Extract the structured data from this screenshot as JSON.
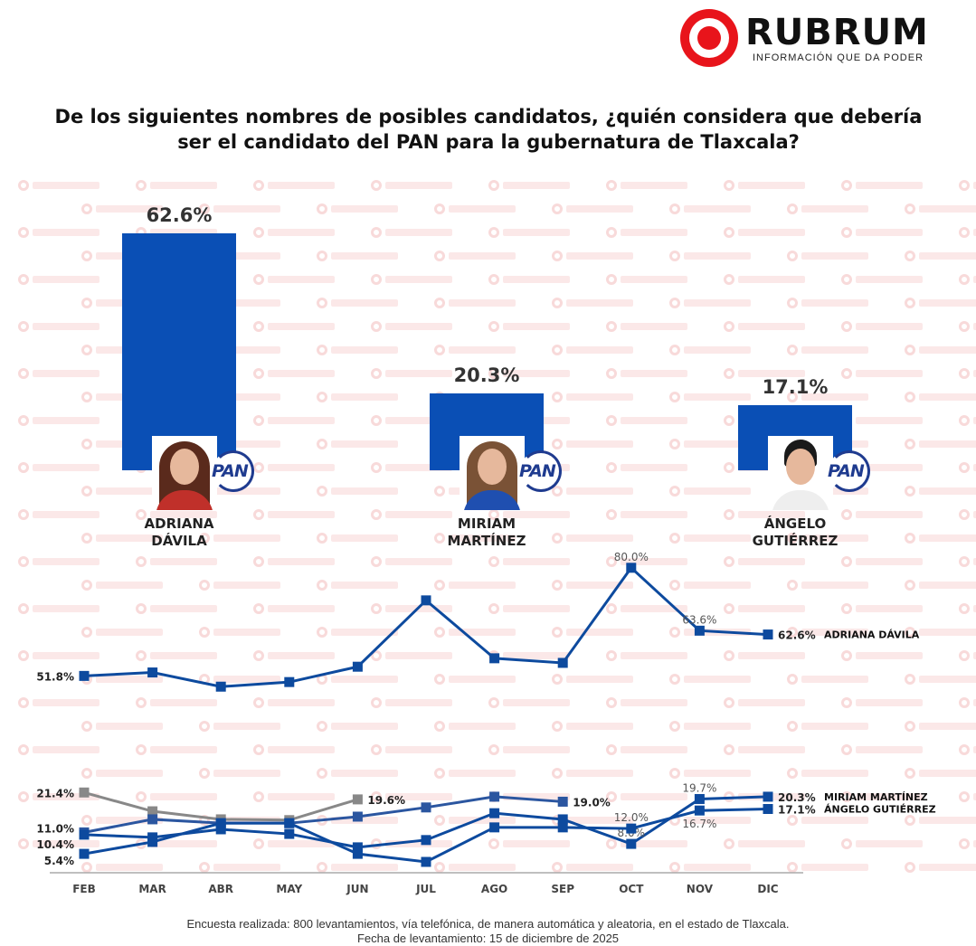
{
  "brand": {
    "name": "RUBRUM",
    "tagline": "INFORMACIÓN QUE DA PODER",
    "watermark": "RUBRUM"
  },
  "title": "De los siguientes nombres de posibles candidatos, ¿quién considera que debería ser el candidato del PAN para la gubernatura de Tlaxcala?",
  "colors": {
    "bar": "#0a4fb5",
    "line": "#0d4a9e",
    "gray": "#888888",
    "logo_red": "#e8141b"
  },
  "chart_data": [
    {
      "type": "bar",
      "title": "De los siguientes nombres de posibles candidatos, ¿quién considera que debería ser el candidato del PAN para la gubernatura de Tlaxcala?",
      "categories": [
        "ADRIANA DÁVILA",
        "MIRIAM MARTÍNEZ",
        "ÁNGELO GUTIÉRREZ"
      ],
      "name_lines": [
        [
          "ADRIANA",
          "DÁVILA"
        ],
        [
          "MIRIAM",
          "MARTÍNEZ"
        ],
        [
          "ÁNGELO",
          "GUTIÉRREZ"
        ]
      ],
      "values": [
        62.6,
        20.3,
        17.1
      ],
      "value_labels": [
        "62.6%",
        "20.3%",
        "17.1%"
      ],
      "party_logo_text": "PAN"
    },
    {
      "type": "line",
      "x": [
        "FEB",
        "MAR",
        "ABR",
        "MAY",
        "JUN",
        "JUL",
        "AGO",
        "SEP",
        "OCT",
        "NOV",
        "DIC"
      ],
      "ylim": [
        0,
        85
      ],
      "grid": false,
      "series": [
        {
          "name": "ADRIANA DÁVILA",
          "color": "#0d4a9e",
          "values": [
            51.8,
            52.7,
            49.0,
            50.2,
            54.2,
            71.5,
            56.4,
            55.2,
            80.0,
            63.6,
            62.6
          ],
          "labels": [
            {
              "i": 0,
              "text": "51.8%",
              "pos": "left",
              "bold": true
            },
            {
              "i": 8,
              "text": "80.0%",
              "pos": "above"
            },
            {
              "i": 9,
              "text": "63.6%",
              "pos": "above"
            },
            {
              "i": 10,
              "text": "62.6%",
              "pos": "right",
              "bold": true
            }
          ]
        },
        {
          "name": "",
          "color": "#888888",
          "values": [
            21.4,
            16.5,
            14.4,
            14.2,
            19.6,
            null,
            null,
            null,
            null,
            null,
            null
          ],
          "labels": [
            {
              "i": 0,
              "text": "21.4%",
              "pos": "left",
              "bold": true
            },
            {
              "i": 4,
              "text": "19.6%",
              "pos": "right",
              "bold": true
            }
          ]
        },
        {
          "name": "",
          "color": "#2b56a0",
          "values": [
            11.0,
            14.4,
            13.4,
            13.4,
            15.1,
            17.5,
            20.3,
            19.0,
            null,
            null,
            null
          ],
          "labels": [
            {
              "i": 0,
              "text": "11.0%",
              "pos": "left",
              "bold": true
            },
            {
              "i": 7,
              "text": "19.0%",
              "pos": "right",
              "bold": true
            }
          ]
        },
        {
          "name": "MIRIAM MARTÍNEZ",
          "color": "#0d4a9e",
          "values": [
            10.4,
            9.7,
            11.8,
            10.6,
            7.1,
            9.0,
            16.0,
            14.4,
            8.0,
            19.7,
            20.3
          ],
          "labels": [
            {
              "i": 0,
              "text": "10.4%",
              "pos": "left",
              "bold": true
            },
            {
              "i": 8,
              "text": "8.0%",
              "pos": "above"
            },
            {
              "i": 9,
              "text": "19.7%",
              "pos": "above"
            },
            {
              "i": 10,
              "text": "20.3%",
              "pos": "right",
              "bold": true
            }
          ]
        },
        {
          "name": "ÁNGELO GUTIÉRREZ",
          "color": "#0d4a9e",
          "values": [
            5.4,
            8.5,
            13.4,
            13.4,
            5.4,
            3.3,
            12.3,
            12.3,
            12.0,
            16.7,
            17.1
          ],
          "labels": [
            {
              "i": 0,
              "text": "5.4%",
              "pos": "left",
              "bold": true
            },
            {
              "i": 8,
              "text": "12.0%",
              "pos": "above"
            },
            {
              "i": 9,
              "text": "16.7%",
              "pos": "above"
            },
            {
              "i": 10,
              "text": "17.1%",
              "pos": "right",
              "bold": true
            }
          ]
        }
      ]
    }
  ],
  "footer": {
    "line1": "Encuesta realizada: 800 levantamientos, vía telefónica, de manera automática y aleatoria, en el estado de Tlaxcala.",
    "line2": "Fecha de levantamiento: 15 de diciembre de 2025"
  }
}
